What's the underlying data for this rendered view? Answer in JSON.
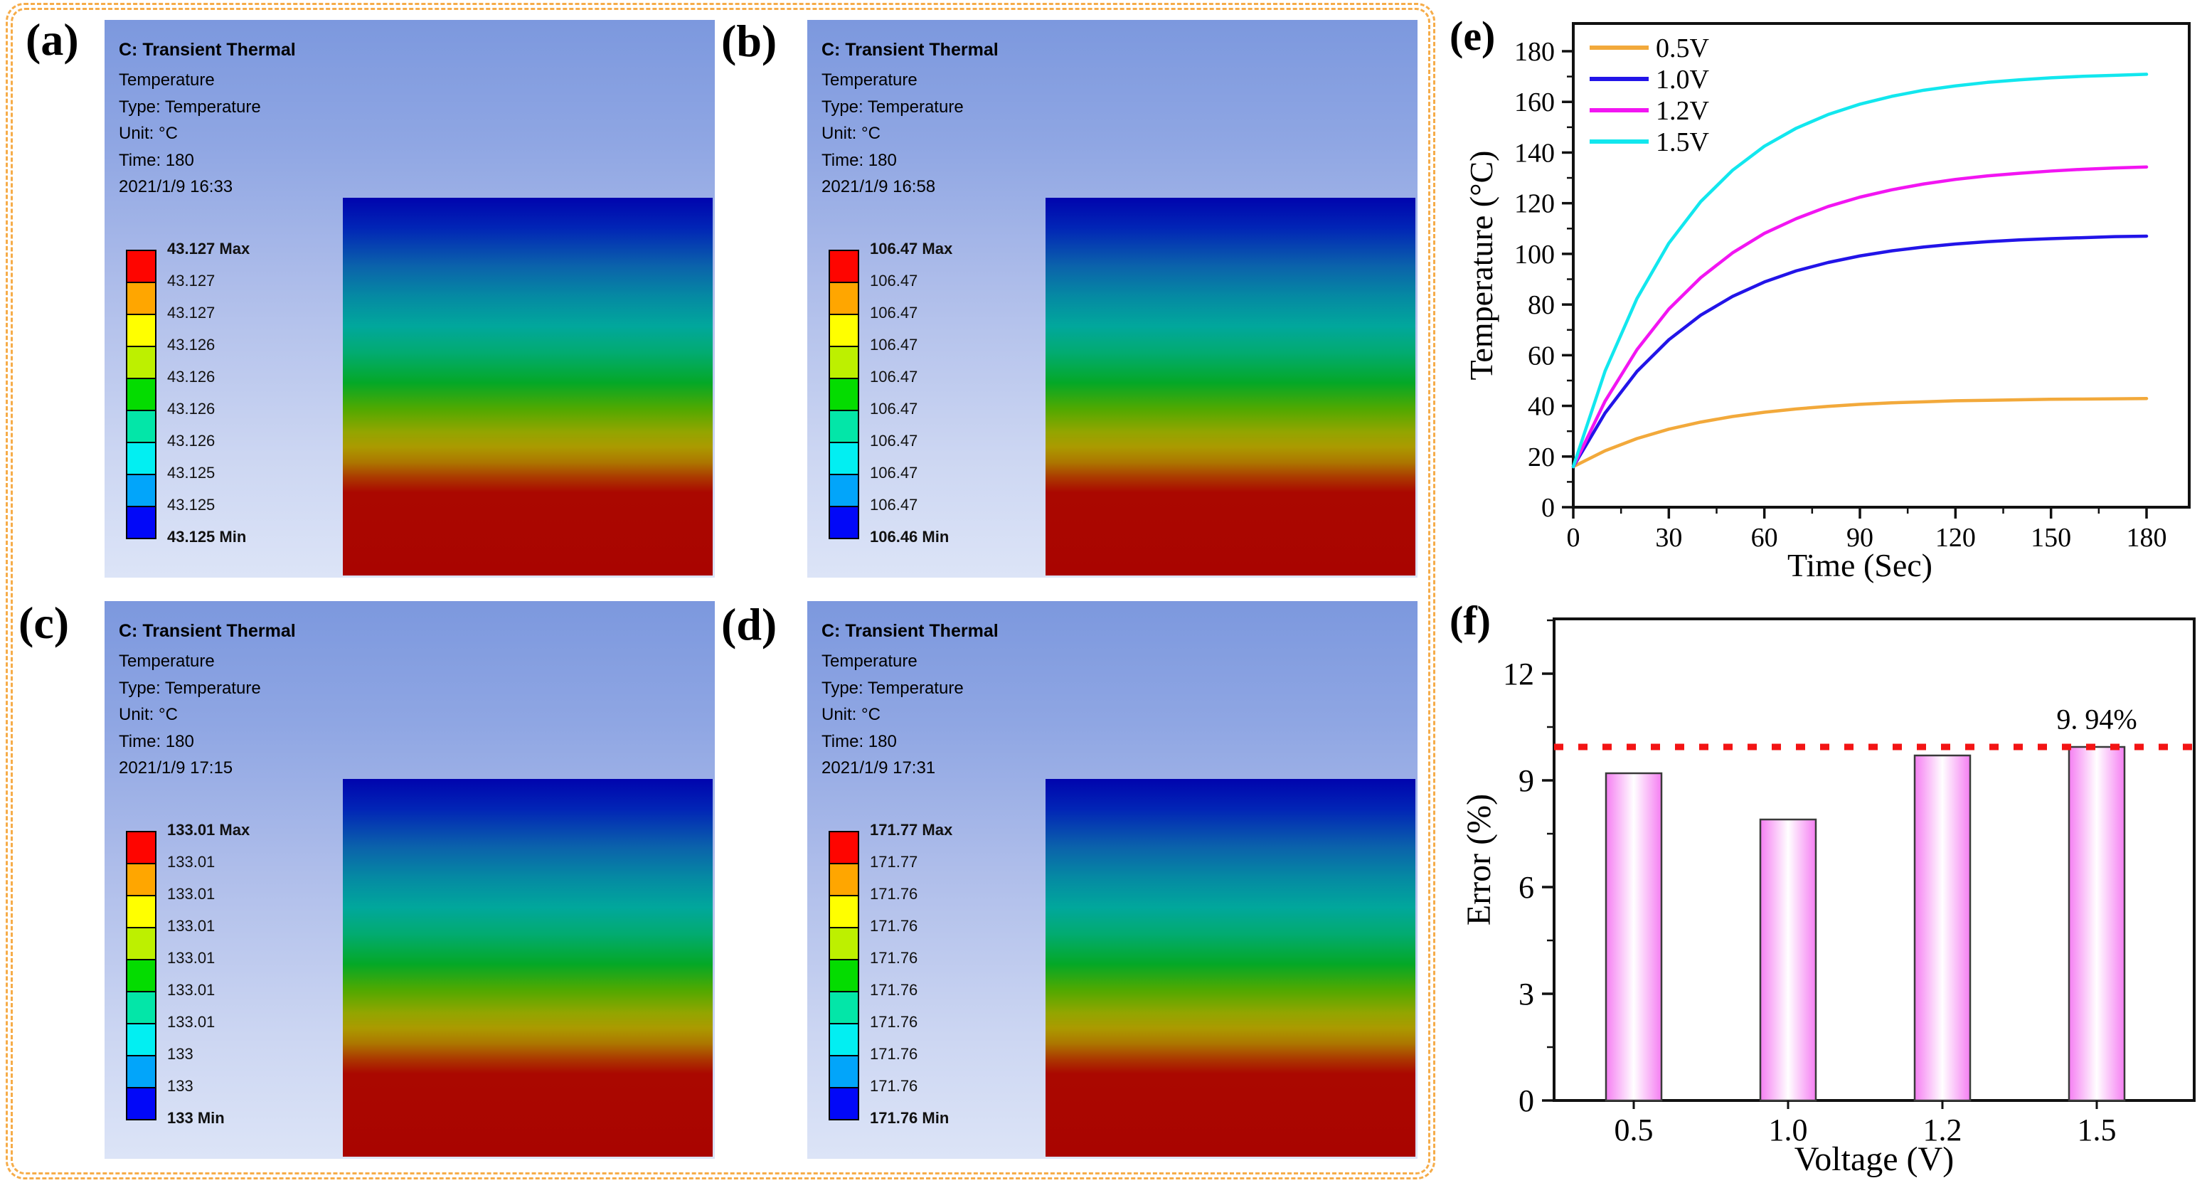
{
  "figure": {
    "frame_color": "#F6AC49",
    "contour_colors": [
      "#FE0500",
      "#FFA600",
      "#FFFF00",
      "#BDF000",
      "#04DC00",
      "#03E6A8",
      "#02EFF2",
      "#02A5FA",
      "#0208F8"
    ],
    "panels": [
      {
        "label": "(a)",
        "title": "C: Transient Thermal",
        "info_lines": [
          "Temperature",
          "Type: Temperature",
          "Unit: °C",
          "Time: 180",
          "2021/1/9 16:33"
        ],
        "legend_values": [
          "43.127 Max",
          "43.127",
          "43.127",
          "43.126",
          "43.126",
          "43.126",
          "43.126",
          "43.125",
          "43.125",
          "43.125 Min"
        ]
      },
      {
        "label": "(b)",
        "title": "C: Transient Thermal",
        "info_lines": [
          "Temperature",
          "Type: Temperature",
          "Unit: °C",
          "Time: 180",
          "2021/1/9 16:58"
        ],
        "legend_values": [
          "106.47 Max",
          "106.47",
          "106.47",
          "106.47",
          "106.47",
          "106.47",
          "106.47",
          "106.47",
          "106.47",
          "106.46 Min"
        ]
      },
      {
        "label": "(c)",
        "title": "C: Transient Thermal",
        "info_lines": [
          "Temperature",
          "Type: Temperature",
          "Unit: °C",
          "Time: 180",
          "2021/1/9 17:15"
        ],
        "legend_values": [
          "133.01 Max",
          "133.01",
          "133.01",
          "133.01",
          "133.01",
          "133.01",
          "133.01",
          "133",
          "133",
          "133 Min"
        ]
      },
      {
        "label": "(d)",
        "title": "C: Transient Thermal",
        "info_lines": [
          "Temperature",
          "Type: Temperature",
          "Unit: °C",
          "Time: 180",
          "2021/1/9 17:31"
        ],
        "legend_values": [
          "171.77 Max",
          "171.77",
          "171.76",
          "171.76",
          "171.76",
          "171.76",
          "171.76",
          "171.76",
          "171.76",
          "171.76 Min"
        ]
      }
    ]
  },
  "chart_data": [
    {
      "id": "e",
      "type": "line",
      "label": "(e)",
      "xlabel": "Time (Sec)",
      "ylabel": "Temperature (°C)",
      "xlim": [
        0,
        193
      ],
      "ylim": [
        0,
        191
      ],
      "xticks": [
        0,
        30,
        60,
        90,
        120,
        150,
        180
      ],
      "yticks": [
        0,
        20,
        40,
        60,
        80,
        100,
        120,
        140,
        160,
        180
      ],
      "legend_position": "top-left",
      "grid": false,
      "x": [
        0,
        10,
        20,
        30,
        40,
        50,
        60,
        70,
        80,
        90,
        100,
        110,
        120,
        130,
        140,
        150,
        160,
        170,
        180
      ],
      "series": [
        {
          "name": "0.5V",
          "color": "#F2A93B",
          "y": [
            16,
            22.3,
            27.1,
            30.8,
            33.6,
            35.8,
            37.5,
            38.8,
            39.8,
            40.6,
            41.2,
            41.6,
            42.0,
            42.2,
            42.4,
            42.6,
            42.7,
            42.8,
            42.9
          ]
        },
        {
          "name": "1.0V",
          "color": "#2214E8",
          "y": [
            16,
            37.2,
            53.6,
            66.1,
            75.8,
            83.2,
            88.9,
            93.3,
            96.6,
            99.2,
            101.2,
            102.7,
            103.9,
            104.8,
            105.5,
            106.0,
            106.4,
            106.8,
            107.0
          ]
        },
        {
          "name": "1.2V",
          "color": "#F215F2",
          "y": [
            16,
            41.9,
            62.2,
            78.2,
            90.6,
            100.4,
            108.1,
            113.9,
            118.7,
            122.4,
            125.3,
            127.6,
            129.4,
            130.8,
            131.8,
            132.7,
            133.4,
            133.9,
            134.3
          ]
        },
        {
          "name": "1.5V",
          "color": "#12E7EE",
          "y": [
            16,
            53.8,
            82.4,
            104.2,
            120.6,
            133.0,
            142.5,
            149.6,
            155.0,
            159.1,
            162.2,
            164.6,
            166.3,
            167.7,
            168.7,
            169.5,
            170.1,
            170.5,
            170.9
          ]
        }
      ]
    },
    {
      "id": "f",
      "type": "bar",
      "label": "(f)",
      "xlabel": "Voltage (V)",
      "ylabel": "Error (%)",
      "categories": [
        "0.5",
        "1.0",
        "1.2",
        "1.5"
      ],
      "values": [
        9.2,
        7.9,
        9.7,
        9.94
      ],
      "yticks": [
        0,
        3,
        6,
        9,
        12
      ],
      "ylim": [
        0,
        13.5
      ],
      "grid": false,
      "bar_fill_edge": "#F57EF2",
      "bar_fill_center": "#FFFFFF",
      "bar_outline": "#3A3A3A",
      "ref_line": {
        "value": 9.94,
        "color": "#F31414",
        "style": "dotted"
      },
      "annotation": {
        "text": "9. 94%",
        "value": 10.45,
        "category_index": 3
      }
    }
  ]
}
